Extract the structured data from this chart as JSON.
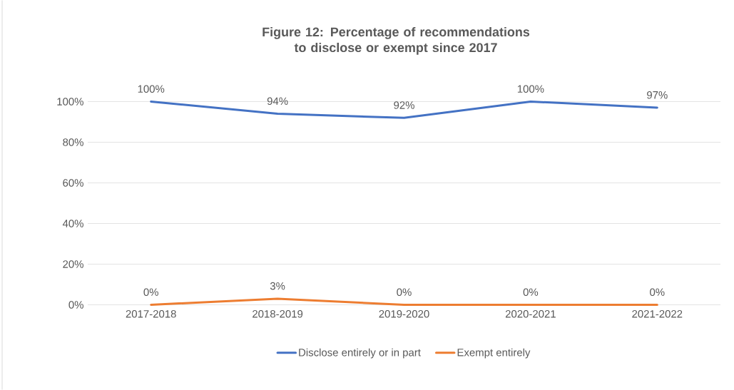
{
  "chart_data": {
    "type": "line",
    "title": "Figure 12: Percentage of recommendations to disclose or exempt since 2017",
    "categories": [
      "2017-2018",
      "2018-2019",
      "2019-2020",
      "2020-2021",
      "2021-2022"
    ],
    "series": [
      {
        "name": "Disclose entirely or in part",
        "color": "#4472c4",
        "values": [
          100,
          94,
          92,
          100,
          97
        ],
        "value_labels": [
          "100%",
          "94%",
          "92%",
          "100%",
          "97%"
        ]
      },
      {
        "name": "Exempt entirely",
        "color": "#ed7d31",
        "values": [
          0,
          3,
          0,
          0,
          0
        ],
        "value_labels": [
          "0%",
          "3%",
          "0%",
          "0%",
          "0%"
        ]
      }
    ],
    "ylim": [
      0,
      100
    ],
    "yticks": [
      {
        "value": 0,
        "label": "0%"
      },
      {
        "value": 20,
        "label": "20%"
      },
      {
        "value": 40,
        "label": "40%"
      },
      {
        "value": 60,
        "label": "60%"
      },
      {
        "value": 80,
        "label": "80%"
      },
      {
        "value": 100,
        "label": "100%"
      }
    ],
    "grid": "y",
    "legend": "bottom",
    "marker": "none",
    "line_style": "solid"
  }
}
